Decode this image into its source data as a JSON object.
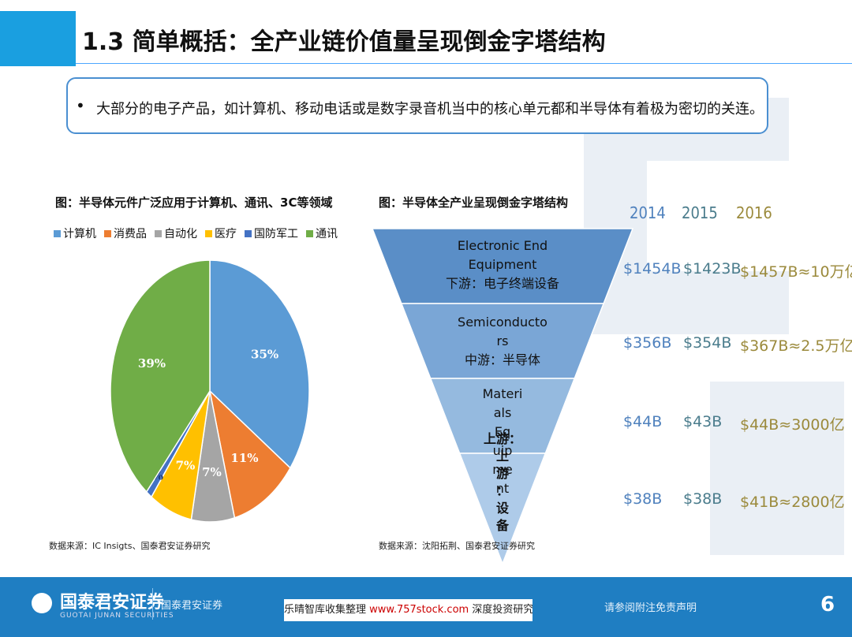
{
  "slide": {
    "title": "1.3 简单概括：全产业链价值量呈现倒金字塔结构",
    "bullet": "大部分的电子产品，如计算机、移动电话或是数字录音机当中的核心单元都和半导体有着极为密切的关连。",
    "bullet_marker": "•"
  },
  "left_figure": {
    "title": "图：半导体元件广泛应用于计算机、通讯、3C等领域",
    "source": "数据来源：IC Insigts、国泰君安证券研究"
  },
  "right_figure": {
    "title": "图：半导体全产业呈现倒金字塔结构",
    "source": "数据来源：沈阳拓荆、国泰君安证券研究"
  },
  "chart_data": {
    "type": "pie",
    "slices": [
      {
        "name": "计算机",
        "value": 35,
        "label": "35%",
        "color": "#5b9bd5"
      },
      {
        "name": "消费品",
        "value": 11,
        "label": "11%",
        "color": "#ed7d31"
      },
      {
        "name": "自动化",
        "value": 7,
        "label": "7%",
        "color": "#a5a5a5"
      },
      {
        "name": "医疗",
        "value": 7,
        "label": "7%",
        "color": "#ffc000"
      },
      {
        "name": "国防军工",
        "value": 1,
        "label": "1%",
        "color": "#4472c4"
      },
      {
        "name": "通讯",
        "value": 39,
        "label": "39%",
        "color": "#70ad47"
      }
    ],
    "legend": "top"
  },
  "pyramid": {
    "years": [
      "2014",
      "2015",
      "2016"
    ],
    "year_colors": [
      "#4f81bd",
      "#4a7c8c",
      "#9b8a3c"
    ],
    "levels": [
      {
        "label_lines": [
          "Electronic End",
          "Equipment",
          "下游：电子终端设备"
        ],
        "values": [
          "$1454B",
          "$1423B",
          "$1457B≈10万亿"
        ],
        "color": "#5a8ec7"
      },
      {
        "label_lines": [
          "Semiconducto",
          "rs",
          "中游：半导体"
        ],
        "values": [
          "$356B",
          "$354B",
          "$367B≈2.5万亿"
        ],
        "color": "#7aa6d6"
      },
      {
        "label_lines": [
          "Materi",
          "als",
          "Eq",
          "uip",
          "me",
          "nt"
        ],
        "values": [
          "$44B",
          "$43B",
          "$44B≈3000亿"
        ],
        "color": "#95badf"
      },
      {
        "label_lines": [
          "上游：",
          "上",
          "游",
          "：",
          "设",
          "备"
        ],
        "values": [
          "$38B",
          "$38B",
          "$41B≈2800亿"
        ],
        "color": "#aecbe9"
      }
    ]
  },
  "footer": {
    "brand": "国泰君安证券",
    "brand_en": "GUOTAI JUNAN SECURITIES",
    "brand2": "国泰君安证券",
    "watermark_prefix": "乐晴智库收集整理 ",
    "watermark_url": "www.757stock.com",
    "watermark_suffix": " 深度投资研究免费下载",
    "disclaimer": "请参阅附注免责声明",
    "page": "6"
  }
}
